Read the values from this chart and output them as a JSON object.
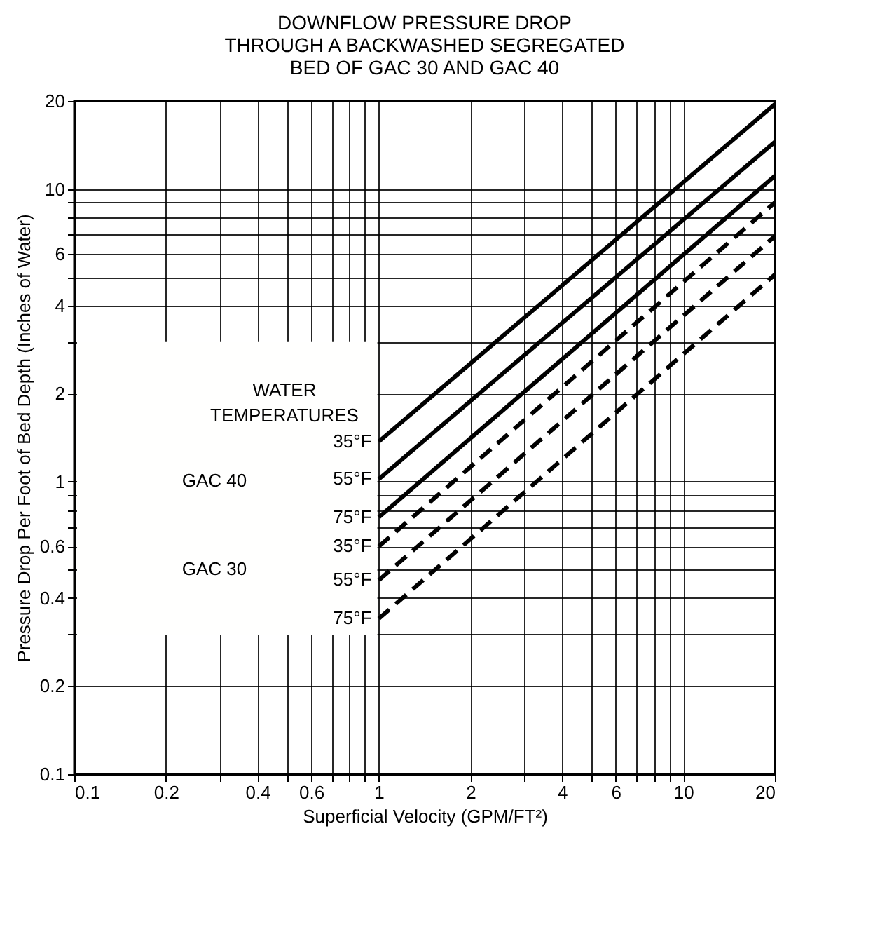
{
  "chart_data": {
    "type": "line",
    "title": "DOWNFLOW PRESSURE DROP\nTHROUGH A BACKWASHED SEGREGATED\nBED OF GAC 30 AND GAC 40",
    "xlabel": "Superficial Velocity (GPM/FT²)",
    "ylabel": "Pressure Drop Per Foot of Bed Depth (Inches of Water)",
    "annotations": [
      "WATER\nTEMPERATURES",
      "GAC 40",
      "GAC 30"
    ],
    "log": "xy",
    "grid": true,
    "legend": false,
    "marker": "none",
    "x": [
      1,
      20
    ],
    "xlim": [
      0.1,
      20
    ],
    "xticks": [
      0.1,
      0.2,
      {
        "value": 0.3,
        "label": null
      },
      0.4,
      {
        "value": 0.5,
        "label": null
      },
      0.6,
      {
        "value": 0.7,
        "label": null
      },
      {
        "value": 0.8,
        "label": null
      },
      {
        "value": 0.9,
        "label": null
      },
      1,
      2,
      {
        "value": 3,
        "label": null
      },
      4,
      {
        "value": 5,
        "label": null
      },
      6,
      {
        "value": 7,
        "label": null
      },
      {
        "value": 8,
        "label": null
      },
      {
        "value": 9,
        "label": null
      },
      10,
      20
    ],
    "ylim": [
      0.1,
      20
    ],
    "yticks": [
      0.1,
      0.2,
      {
        "value": 0.3,
        "label": null
      },
      0.4,
      {
        "value": 0.5,
        "label": null
      },
      0.6,
      {
        "value": 0.7,
        "label": null
      },
      {
        "value": 0.8,
        "label": null
      },
      {
        "value": 0.9,
        "label": null
      },
      1,
      2,
      {
        "value": 3,
        "label": null
      },
      4,
      {
        "value": 5,
        "label": null
      },
      6,
      {
        "value": 7,
        "label": null
      },
      {
        "value": 8,
        "label": null
      },
      {
        "value": 9,
        "label": null
      },
      10,
      20
    ],
    "series": [
      {
        "name": "35°F",
        "color": "#000000",
        "line_style": "solid",
        "values": [
          1.37,
          19.5
        ]
      },
      {
        "name": "55°F",
        "color": "#000000",
        "line_style": "solid",
        "values": [
          1.02,
          14.5
        ]
      },
      {
        "name": "75°F",
        "color": "#000000",
        "line_style": "solid",
        "values": [
          0.755,
          11.1
        ]
      },
      {
        "name": "35°F",
        "color": "#000000",
        "line_style": "dashed",
        "values": [
          0.6,
          9.0
        ]
      },
      {
        "name": "55°F",
        "color": "#000000",
        "line_style": "dashed",
        "values": [
          0.46,
          6.9
        ]
      },
      {
        "name": "75°F",
        "color": "#000000",
        "line_style": "dashed",
        "values": [
          0.34,
          5.1
        ]
      }
    ]
  }
}
